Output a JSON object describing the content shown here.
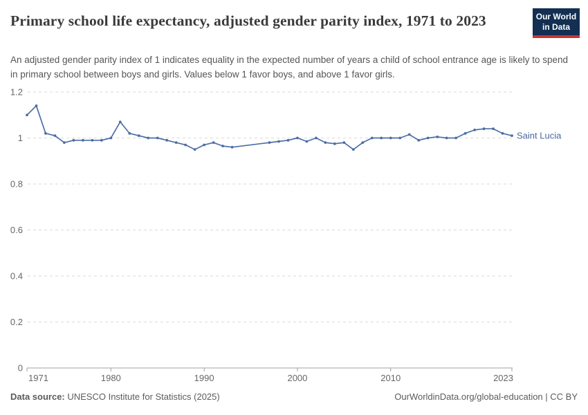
{
  "header": {
    "title": "Primary school life expectancy, adjusted gender parity index, 1971 to 2023",
    "subtitle": "An adjusted gender parity index of 1 indicates equality in the expected number of years a child of school entrance age is likely to spend in primary school between boys and girls. Values below 1 favor boys, and above 1 favor girls.",
    "logo": {
      "line1": "Our World",
      "line2": "in Data"
    }
  },
  "footer": {
    "source_label": "Data source:",
    "source_text": " UNESCO Institute for Statistics (2025)",
    "credit": "OurWorldinData.org/global-education | CC BY"
  },
  "colors": {
    "series_line": "#4c6da5",
    "series_label": "#4a679c",
    "gridline": "#dadada",
    "axis": "#a1a1a1",
    "tick_label": "#666666",
    "logo_bg": "#132f52",
    "logo_stripe": "#c9362e"
  },
  "chart_data": {
    "type": "line",
    "title": "Primary school life expectancy, adjusted gender parity index, 1971 to 2023",
    "xlabel": "",
    "ylabel": "",
    "xlim": [
      1971,
      2023
    ],
    "ylim": [
      0,
      1.2
    ],
    "yticks": [
      0,
      0.2,
      0.4,
      0.6,
      0.8,
      1,
      1.2
    ],
    "ytick_labels": [
      "0",
      "0.2",
      "0.4",
      "0.6",
      "0.8",
      "1",
      "1.2"
    ],
    "xticks": [
      1971,
      1980,
      1990,
      2000,
      2010,
      2023
    ],
    "xtick_labels": [
      "1971",
      "1980",
      "1990",
      "2000",
      "2010",
      "2023"
    ],
    "grid": "horizontal-dashed",
    "legend_position": "end-of-line-label",
    "note": "years 1994-1996 have no data; line connects 1993 directly to 1997",
    "series": [
      {
        "name": "Saint Lucia",
        "points": [
          [
            1971,
            1.1
          ],
          [
            1972,
            1.14
          ],
          [
            1973,
            1.02
          ],
          [
            1974,
            1.01
          ],
          [
            1975,
            0.98
          ],
          [
            1976,
            0.99
          ],
          [
            1977,
            0.99
          ],
          [
            1978,
            0.99
          ],
          [
            1979,
            0.99
          ],
          [
            1980,
            1.0
          ],
          [
            1981,
            1.07
          ],
          [
            1982,
            1.02
          ],
          [
            1983,
            1.01
          ],
          [
            1984,
            1.0
          ],
          [
            1985,
            1.0
          ],
          [
            1986,
            0.99
          ],
          [
            1987,
            0.98
          ],
          [
            1988,
            0.97
          ],
          [
            1989,
            0.95
          ],
          [
            1990,
            0.97
          ],
          [
            1991,
            0.98
          ],
          [
            1992,
            0.965
          ],
          [
            1993,
            0.96
          ],
          [
            1997,
            0.98
          ],
          [
            1998,
            0.985
          ],
          [
            1999,
            0.99
          ],
          [
            2000,
            1.0
          ],
          [
            2001,
            0.985
          ],
          [
            2002,
            1.0
          ],
          [
            2003,
            0.98
          ],
          [
            2004,
            0.975
          ],
          [
            2005,
            0.98
          ],
          [
            2006,
            0.95
          ],
          [
            2007,
            0.98
          ],
          [
            2008,
            1.0
          ],
          [
            2009,
            1.0
          ],
          [
            2010,
            1.0
          ],
          [
            2011,
            1.0
          ],
          [
            2012,
            1.015
          ],
          [
            2013,
            0.99
          ],
          [
            2014,
            1.0
          ],
          [
            2015,
            1.005
          ],
          [
            2016,
            1.0
          ],
          [
            2017,
            1.0
          ],
          [
            2018,
            1.02
          ],
          [
            2019,
            1.035
          ],
          [
            2020,
            1.04
          ],
          [
            2021,
            1.04
          ],
          [
            2022,
            1.02
          ],
          [
            2023,
            1.01
          ]
        ]
      }
    ]
  }
}
